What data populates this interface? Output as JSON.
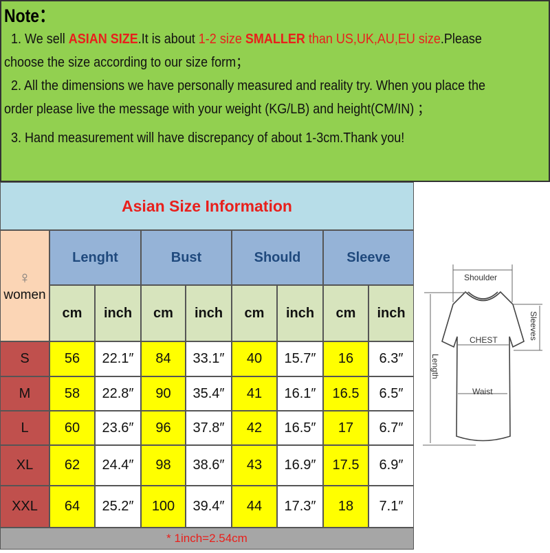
{
  "note": {
    "title": "Note：",
    "line1": {
      "prefix": "1.  We sell ",
      "asian": "ASIAN SIZE",
      "mid": ".It is about ",
      "range": "1-2 size ",
      "smaller": "SMALLER",
      "than": " than US,UK,AU,EU size",
      ".suffix": "",
      "suffix": ".Please",
      "cont": "choose the size according to our size form；"
    },
    "line2": {
      "text": "2.  All the dimensions we have personally measured and reality try. When you place the",
      "cont": "order please live the message with your weight (KG/LB) and height(CM/IN) ；"
    },
    "line3": "3.  Hand measurement will have discrepancy of about 1-3cm.Thank you!"
  },
  "table": {
    "title": "Asian Size Information",
    "gender_symbol": "♀",
    "gender": "women",
    "headers": [
      "Lenght",
      "Bust",
      "Should",
      "Sleeve"
    ],
    "units": [
      "cm",
      "inch",
      "cm",
      "inch",
      "cm",
      "inch",
      "cm",
      "inch"
    ],
    "rows": [
      {
        "size": "S",
        "values": [
          "56",
          "22.1″",
          "84",
          "33.1″",
          "40",
          "15.7″",
          "16",
          "6.3″"
        ]
      },
      {
        "size": "M",
        "values": [
          "58",
          "22.8″",
          "90",
          "35.4″",
          "41",
          "16.1″",
          "16.5",
          "6.5″"
        ]
      },
      {
        "size": "L",
        "values": [
          "60",
          "23.6″",
          "96",
          "37.8″",
          "42",
          "16.5″",
          "17",
          "6.7″"
        ]
      },
      {
        "size": "XL",
        "values": [
          "62",
          "24.4″",
          "98",
          "38.6″",
          "43",
          "16.9″",
          "17.5",
          "6.9″"
        ]
      },
      {
        "size": "XXL",
        "values": [
          "64",
          "25.2″",
          "100",
          "39.4″",
          "44",
          "17.3″",
          "18",
          "7.1″"
        ]
      }
    ],
    "footnote": "* 1inch=2.54cm"
  },
  "diagram": {
    "shoulder": "Shoulder",
    "chest": "CHEST",
    "waist": "Waist",
    "length": "Length",
    "sleeves": "Sleeves"
  }
}
